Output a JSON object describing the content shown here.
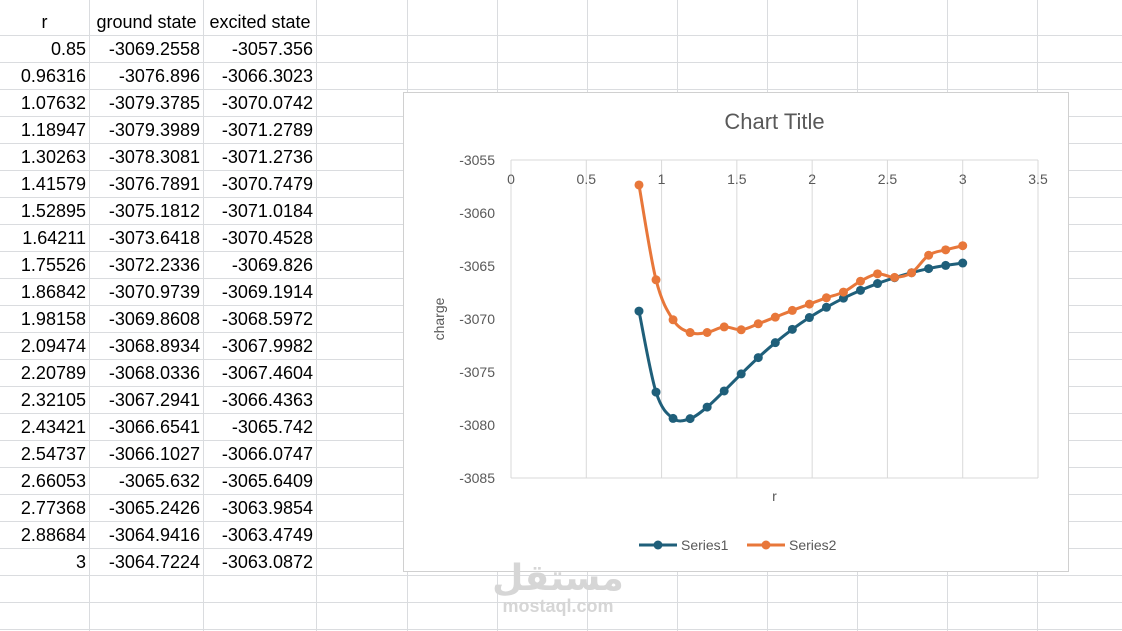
{
  "sheet": {
    "headers": [
      "r",
      "ground state",
      "excited state"
    ],
    "rows": [
      [
        "0.85",
        "-3069.2558",
        "-3057.356"
      ],
      [
        "0.96316",
        "-3076.896",
        "-3066.3023"
      ],
      [
        "1.07632",
        "-3079.3785",
        "-3070.0742"
      ],
      [
        "1.18947",
        "-3079.3989",
        "-3071.2789"
      ],
      [
        "1.30263",
        "-3078.3081",
        "-3071.2736"
      ],
      [
        "1.41579",
        "-3076.7891",
        "-3070.7479"
      ],
      [
        "1.52895",
        "-3075.1812",
        "-3071.0184"
      ],
      [
        "1.64211",
        "-3073.6418",
        "-3070.4528"
      ],
      [
        "1.75526",
        "-3072.2336",
        "-3069.826"
      ],
      [
        "1.86842",
        "-3070.9739",
        "-3069.1914"
      ],
      [
        "1.98158",
        "-3069.8608",
        "-3068.5972"
      ],
      [
        "2.09474",
        "-3068.8934",
        "-3067.9982"
      ],
      [
        "2.20789",
        "-3068.0336",
        "-3067.4604"
      ],
      [
        "2.32105",
        "-3067.2941",
        "-3066.4363"
      ],
      [
        "2.43421",
        "-3066.6541",
        "-3065.742"
      ],
      [
        "2.54737",
        "-3066.1027",
        "-3066.0747"
      ],
      [
        "2.66053",
        "-3065.632",
        "-3065.6409"
      ],
      [
        "2.77368",
        "-3065.2426",
        "-3063.9854"
      ],
      [
        "2.88684",
        "-3064.9416",
        "-3063.4749"
      ],
      [
        "3",
        "-3064.7224",
        "-3063.0872"
      ]
    ]
  },
  "chart_data": {
    "type": "line",
    "title": "Chart Title",
    "xlabel": "r",
    "ylabel": "charge",
    "xlim": [
      0,
      3.5
    ],
    "ylim": [
      -3085,
      -3055
    ],
    "x_ticks": [
      "0",
      "0.5",
      "1",
      "1.5",
      "2",
      "2.5",
      "3",
      "3.5"
    ],
    "y_ticks": [
      "-3055",
      "-3060",
      "-3065",
      "-3070",
      "-3075",
      "-3080",
      "-3085"
    ],
    "grid": "vertical",
    "legend": "bottom",
    "x": [
      0.85,
      0.96316,
      1.07632,
      1.18947,
      1.30263,
      1.41579,
      1.52895,
      1.64211,
      1.75526,
      1.86842,
      1.98158,
      2.09474,
      2.20789,
      2.32105,
      2.43421,
      2.54737,
      2.66053,
      2.77368,
      2.88684,
      3
    ],
    "series": [
      {
        "name": "Series1",
        "color": "#1f5f7a",
        "values": [
          -3069.2558,
          -3076.896,
          -3079.3785,
          -3079.3989,
          -3078.3081,
          -3076.7891,
          -3075.1812,
          -3073.6418,
          -3072.2336,
          -3070.9739,
          -3069.8608,
          -3068.8934,
          -3068.0336,
          -3067.2941,
          -3066.6541,
          -3066.1027,
          -3065.632,
          -3065.2426,
          -3064.9416,
          -3064.7224
        ]
      },
      {
        "name": "Series2",
        "color": "#e8773a",
        "values": [
          -3057.356,
          -3066.3023,
          -3070.0742,
          -3071.2789,
          -3071.2736,
          -3070.7479,
          -3071.0184,
          -3070.4528,
          -3069.826,
          -3069.1914,
          -3068.5972,
          -3067.9982,
          -3067.4604,
          -3066.4363,
          -3065.742,
          -3066.0747,
          -3065.6409,
          -3063.9854,
          -3063.4749,
          -3063.0872
        ]
      }
    ]
  },
  "watermark": {
    "arabic": "مستقل",
    "latin": "mostaql.com"
  }
}
